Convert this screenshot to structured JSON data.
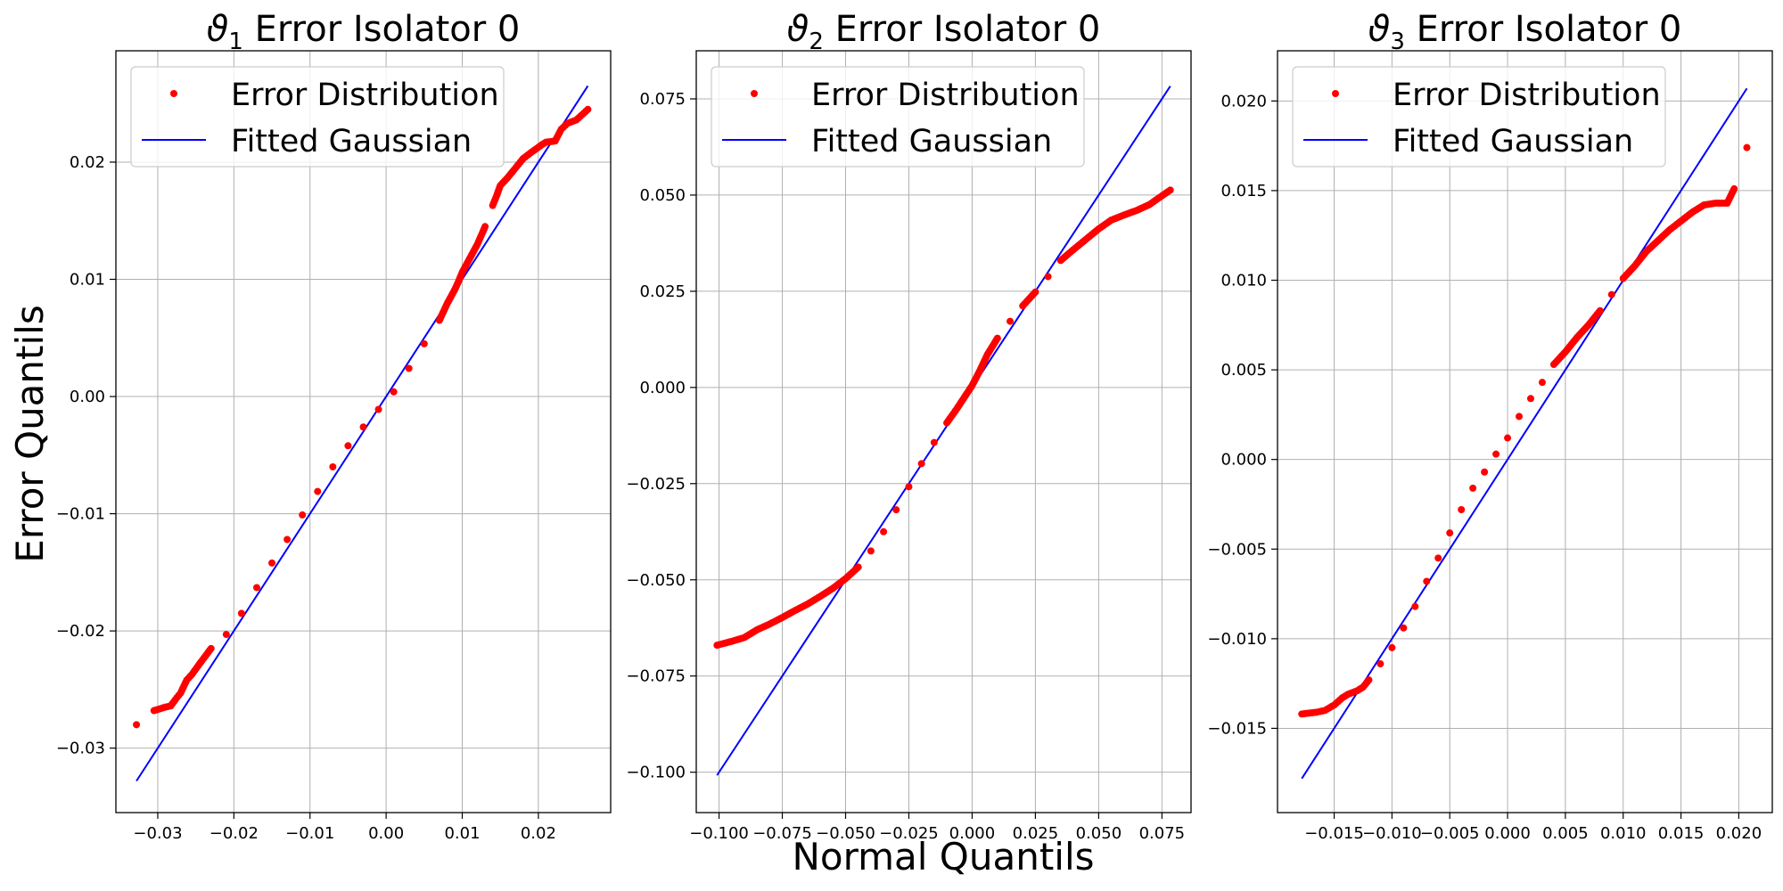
{
  "figure": {
    "ylabel": "Error Quantils",
    "xlabel": "Normal Quantils",
    "legend": {
      "points": "Error Distribution",
      "line": "Fitted Gaussian"
    },
    "colors": {
      "points": "#ff0000",
      "line": "#0000ff",
      "grid": "#b0b0b0"
    }
  },
  "chart_data": [
    {
      "type": "scatter",
      "title_sym": "ϑ",
      "title_sub": "1",
      "title_rest": " Error Isolator 0",
      "xlim": [
        -0.0355,
        0.0295
      ],
      "ylim": [
        -0.0355,
        0.0295
      ],
      "xticks": [
        -0.03,
        -0.02,
        -0.01,
        0.0,
        0.01,
        0.02
      ],
      "xtick_labels": [
        "−0.03",
        "−0.02",
        "−0.01",
        "0.00",
        "0.01",
        "0.02"
      ],
      "yticks": [
        -0.03,
        -0.02,
        -0.01,
        0.0,
        0.01,
        0.02
      ],
      "ytick_labels": [
        "−0.03",
        "−0.02",
        "−0.01",
        "0.00",
        "0.01",
        "0.02"
      ],
      "grid": true,
      "legend_position": "upper-left",
      "fit_line": {
        "x": [
          -0.0328,
          0.0265
        ],
        "y": [
          -0.0328,
          0.0265
        ]
      },
      "error_distribution": {
        "x": [
          -0.0328,
          -0.0305,
          -0.029,
          -0.0283,
          -0.0275,
          -0.027,
          -0.0262,
          -0.0255,
          -0.0245,
          -0.023,
          -0.021,
          -0.019,
          -0.017,
          -0.015,
          -0.013,
          -0.011,
          -0.009,
          -0.007,
          -0.005,
          -0.003,
          -0.001,
          0.001,
          0.003,
          0.005,
          0.007,
          0.008,
          0.009,
          0.0095,
          0.01,
          0.011,
          0.012,
          0.013,
          0.014,
          0.0145,
          0.015,
          0.016,
          0.017,
          0.018,
          0.019,
          0.0205,
          0.021,
          0.0222,
          0.023,
          0.0238,
          0.025,
          0.0265
        ],
        "y": [
          -0.028,
          -0.0268,
          -0.0265,
          -0.0264,
          -0.0257,
          -0.0253,
          -0.0242,
          -0.0237,
          -0.0228,
          -0.0215,
          -0.0203,
          -0.0185,
          -0.0163,
          -0.0142,
          -0.0122,
          -0.0101,
          -0.0081,
          -0.006,
          -0.0042,
          -0.0026,
          -0.0011,
          0.0004,
          0.0024,
          0.0045,
          0.0065,
          0.0079,
          0.0091,
          0.0098,
          0.0106,
          0.0118,
          0.013,
          0.0145,
          0.0163,
          0.0171,
          0.018,
          0.0187,
          0.0195,
          0.0203,
          0.0208,
          0.0215,
          0.0217,
          0.0218,
          0.0228,
          0.0233,
          0.0236,
          0.0245
        ]
      }
    },
    {
      "type": "scatter",
      "title_sym": "ϑ",
      "title_sub": "2",
      "title_rest": " Error Isolator 0",
      "xlim": [
        -0.109,
        0.0865
      ],
      "ylim": [
        -0.1105,
        0.0875
      ],
      "xticks": [
        -0.1,
        -0.075,
        -0.05,
        -0.025,
        0.0,
        0.025,
        0.05,
        0.075
      ],
      "xtick_labels": [
        "−0.100",
        "−0.075",
        "−0.050",
        "−0.025",
        "0.000",
        "0.025",
        "0.050",
        "0.075"
      ],
      "yticks": [
        -0.1,
        -0.075,
        -0.05,
        -0.025,
        0.0,
        0.025,
        0.05,
        0.075
      ],
      "ytick_labels": [
        "−0.100",
        "−0.075",
        "−0.050",
        "−0.025",
        "0.000",
        "0.025",
        "0.050",
        "0.075"
      ],
      "grid": true,
      "legend_position": "upper-left",
      "fit_line": {
        "x": [
          -0.1008,
          0.0783
        ],
        "y": [
          -0.1008,
          0.0783
        ]
      },
      "error_distribution": {
        "x": [
          -0.1008,
          -0.095,
          -0.09,
          -0.085,
          -0.08,
          -0.075,
          -0.07,
          -0.065,
          -0.06,
          -0.055,
          -0.05,
          -0.045,
          -0.04,
          -0.035,
          -0.03,
          -0.025,
          -0.02,
          -0.015,
          -0.01,
          -0.006,
          -0.003,
          0.0,
          0.003,
          0.006,
          0.01,
          0.015,
          0.02,
          0.025,
          0.03,
          0.035,
          0.04,
          0.045,
          0.05,
          0.055,
          0.06,
          0.065,
          0.07,
          0.075,
          0.0783
        ],
        "y": [
          -0.067,
          -0.066,
          -0.065,
          -0.063,
          -0.0615,
          -0.0598,
          -0.058,
          -0.0563,
          -0.0543,
          -0.0522,
          -0.0497,
          -0.0467,
          -0.0425,
          -0.0375,
          -0.0318,
          -0.0258,
          -0.0198,
          -0.0143,
          -0.0092,
          -0.0055,
          -0.0025,
          0.0005,
          0.0043,
          0.0085,
          0.0128,
          0.0172,
          0.0212,
          0.0248,
          0.0288,
          0.033,
          0.0358,
          0.0385,
          0.0412,
          0.0435,
          0.0448,
          0.046,
          0.0475,
          0.0498,
          0.0513
        ]
      }
    },
    {
      "type": "scatter",
      "title_sym": "ϑ",
      "title_sub": "3",
      "title_rest": " Error Isolator 0",
      "xlim": [
        -0.0199,
        0.0229
      ],
      "ylim": [
        -0.0197,
        0.0228
      ],
      "xticks": [
        -0.015,
        -0.01,
        -0.005,
        0.0,
        0.005,
        0.01,
        0.015,
        0.02
      ],
      "xtick_labels": [
        "−0.015",
        "−0.010",
        "−0.005",
        "0.000",
        "0.005",
        "0.010",
        "0.015",
        "0.020"
      ],
      "yticks": [
        -0.015,
        -0.01,
        -0.005,
        0.0,
        0.005,
        0.01,
        0.015,
        0.02
      ],
      "ytick_labels": [
        "−0.015",
        "−0.010",
        "−0.005",
        "0.000",
        "0.005",
        "0.010",
        "0.015",
        "0.020"
      ],
      "grid": true,
      "legend_position": "upper-left",
      "fit_line": {
        "x": [
          -0.0178,
          0.0207
        ],
        "y": [
          -0.0178,
          0.0207
        ]
      },
      "error_distribution": {
        "x": [
          -0.0178,
          -0.0165,
          -0.0158,
          -0.015,
          -0.0143,
          -0.0138,
          -0.013,
          -0.0125,
          -0.012,
          -0.011,
          -0.01,
          -0.009,
          -0.008,
          -0.007,
          -0.006,
          -0.005,
          -0.004,
          -0.003,
          -0.002,
          -0.001,
          0.0,
          0.001,
          0.002,
          0.003,
          0.004,
          0.005,
          0.006,
          0.007,
          0.008,
          0.009,
          0.01,
          0.011,
          0.012,
          0.013,
          0.014,
          0.015,
          0.016,
          0.017,
          0.018,
          0.0185,
          0.019,
          0.0196,
          0.0207
        ],
        "y": [
          -0.0142,
          -0.0141,
          -0.014,
          -0.0137,
          -0.0133,
          -0.0131,
          -0.0129,
          -0.0127,
          -0.0123,
          -0.0114,
          -0.0105,
          -0.0094,
          -0.0082,
          -0.0068,
          -0.0055,
          -0.0041,
          -0.0028,
          -0.0016,
          -0.0007,
          0.0003,
          0.0012,
          0.0024,
          0.0034,
          0.0043,
          0.0053,
          0.006,
          0.0068,
          0.0075,
          0.0083,
          0.0092,
          0.0101,
          0.0108,
          0.0116,
          0.0122,
          0.0128,
          0.0133,
          0.0138,
          0.0142,
          0.0143,
          0.0143,
          0.0143,
          0.0151,
          0.0174
        ]
      }
    }
  ]
}
